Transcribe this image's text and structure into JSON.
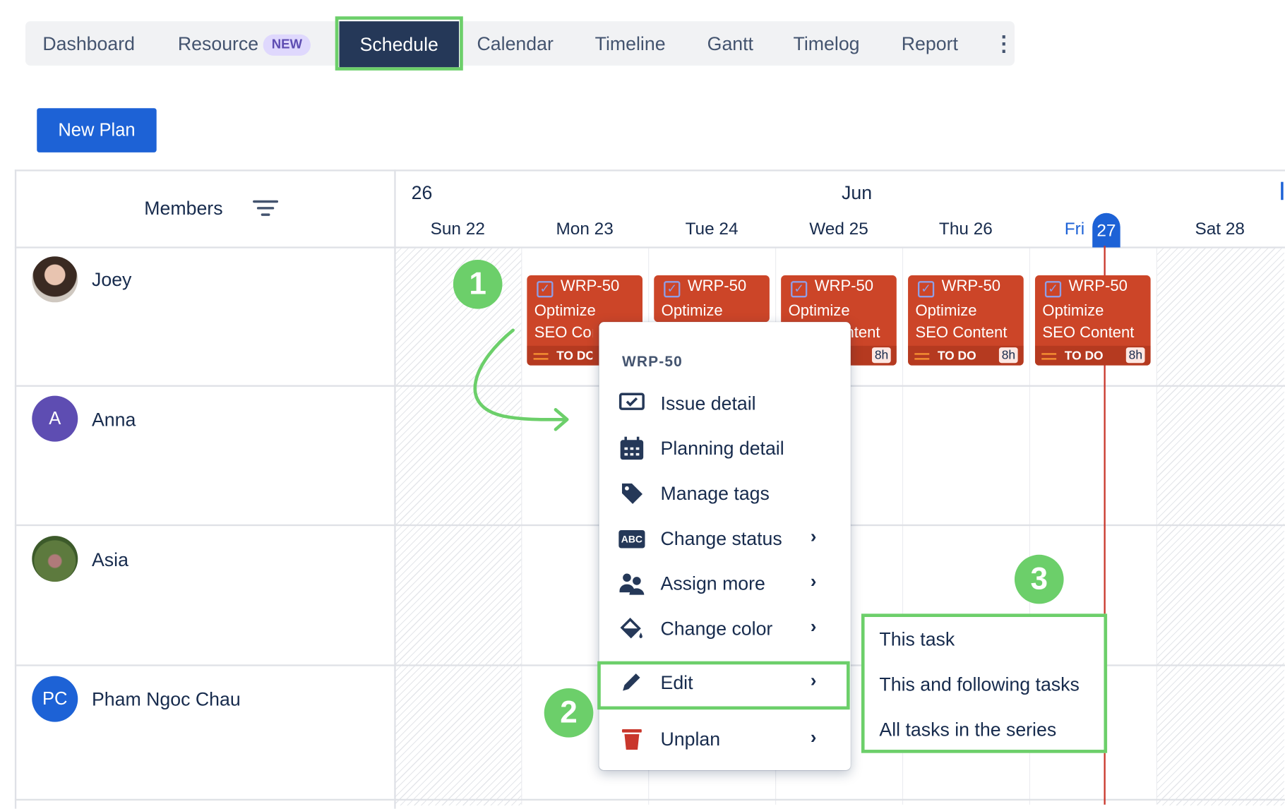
{
  "tabs": [
    {
      "label": "Dashboard"
    },
    {
      "label": "Resource",
      "badge": "NEW"
    },
    {
      "label": "Schedule",
      "active": true
    },
    {
      "label": "Calendar"
    },
    {
      "label": "Timeline"
    },
    {
      "label": "Gantt"
    },
    {
      "label": "Timelog"
    },
    {
      "label": "Report"
    }
  ],
  "new_plan_label": "New Plan",
  "members_header": "Members",
  "calendar": {
    "week": "26",
    "month": "Jun",
    "today_day": "Fri",
    "today_num": "27",
    "days": [
      "Sun 22",
      "Mon 23",
      "Tue 24",
      "Wed 25",
      "Thu 26",
      "",
      "Sat 28"
    ]
  },
  "members": [
    {
      "name": "Joey",
      "avatar": "photo"
    },
    {
      "name": "Anna",
      "initials": "A",
      "color": "#5e4db2"
    },
    {
      "name": "Asia",
      "avatar": "photo"
    },
    {
      "name": "Pham Ngoc Chau",
      "initials": "PC",
      "color": "#1d62d6"
    }
  ],
  "task": {
    "key": "WRP-50",
    "title_line1": "Optimize",
    "title_line2": "SEO Content",
    "status": "TO DO",
    "hours": "8h",
    "color": "#cc4528"
  },
  "context_menu": {
    "header": "WRP-50",
    "items": [
      {
        "label": "Issue detail",
        "icon": "issue-detail-icon"
      },
      {
        "label": "Planning detail",
        "icon": "calendar-icon"
      },
      {
        "label": "Manage tags",
        "icon": "tag-icon"
      },
      {
        "label": "Change status",
        "icon": "abc-icon",
        "submenu": true
      },
      {
        "label": "Assign more",
        "icon": "people-icon",
        "submenu": true
      },
      {
        "label": "Change color",
        "icon": "paint-bucket-icon",
        "submenu": true
      },
      {
        "label": "Edit",
        "icon": "pencil-icon",
        "submenu": true,
        "highlighted": true
      },
      {
        "label": "Unplan",
        "icon": "trash-icon",
        "submenu": true
      }
    ]
  },
  "edit_submenu": [
    "This task",
    "This and following tasks",
    "All tasks in the series"
  ],
  "steps": [
    "1",
    "2",
    "3"
  ],
  "highlight_color": "#6ccf6a"
}
